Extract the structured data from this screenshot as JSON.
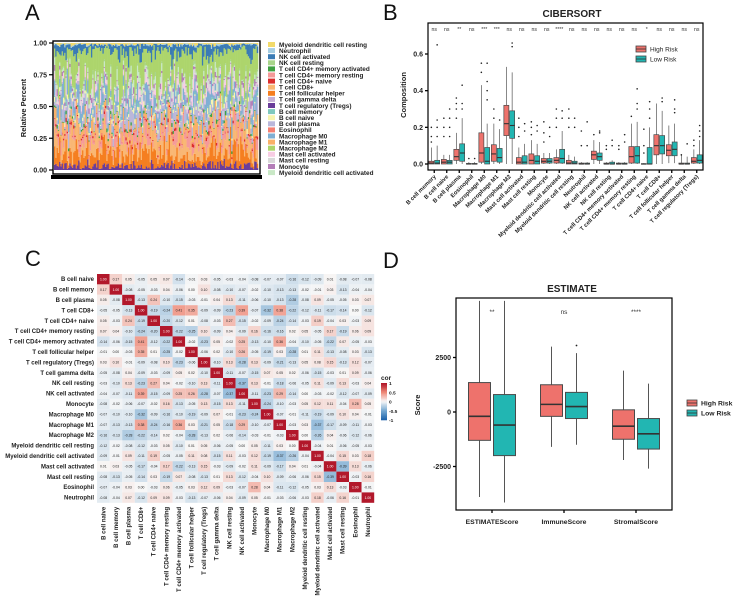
{
  "panel_letters": {
    "a": "A",
    "b": "B",
    "c": "C",
    "d": "D"
  },
  "chart_data": [
    {
      "type": "bar",
      "stacked": true,
      "ylabel": "Relative Percent",
      "yticks": [
        "0.00",
        "0.25",
        "0.50",
        "0.75",
        "1.00"
      ],
      "ylim": [
        0,
        1
      ],
      "legend_position": "right",
      "legend": [
        {
          "name": "Myeloid dendritic cell resting",
          "color": "#F2DA6B",
          "mean_fraction": 0.01
        },
        {
          "name": "Neutrophil",
          "color": "#A6CEE3",
          "mean_fraction": 0.006
        },
        {
          "name": "NK cell activated",
          "color": "#3A7BB5",
          "mean_fraction": 0.05
        },
        {
          "name": "NK cell resting",
          "color": "#A9D58B",
          "mean_fraction": 0.012
        },
        {
          "name": "T cell CD4+ memory activated",
          "color": "#3FA142",
          "mean_fraction": 0.01
        },
        {
          "name": "T cell CD4+ memory resting",
          "color": "#F59A99",
          "mean_fraction": 0.06
        },
        {
          "name": "T cell CD4+ naive",
          "color": "#DC2E2E",
          "mean_fraction": 0.01
        },
        {
          "name": "T cell CD8+",
          "color": "#F9B774",
          "mean_fraction": 0.1
        },
        {
          "name": "T cell follicular helper",
          "color": "#F57E20",
          "mean_fraction": 0.09
        },
        {
          "name": "T cell gamma delta",
          "color": "#C6B0D6",
          "mean_fraction": 0.012
        },
        {
          "name": "T cell regulatory (Tregs)",
          "color": "#6A3D9A",
          "mean_fraction": 0.03
        },
        {
          "name": "B cell memory",
          "color": "#7FC8BE",
          "mean_fraction": 0.012
        },
        {
          "name": "B cell naive",
          "color": "#F7F4AE",
          "mean_fraction": 0.02
        },
        {
          "name": "B cell plasma",
          "color": "#BAB7DA",
          "mean_fraction": 0.06
        },
        {
          "name": "Eosinophil",
          "color": "#F58072",
          "mean_fraction": 0.006
        },
        {
          "name": "Macrophage M0",
          "color": "#80AFD3",
          "mean_fraction": 0.08
        },
        {
          "name": "Macrophage M1",
          "color": "#F9B168",
          "mean_fraction": 0.06
        },
        {
          "name": "Macrophage M2",
          "color": "#ADD56C",
          "mean_fraction": 0.23
        },
        {
          "name": "Mast cell activated",
          "color": "#F7CDE3",
          "mean_fraction": 0.03
        },
        {
          "name": "Mast cell resting",
          "color": "#D9D9D9",
          "mean_fraction": 0.03
        },
        {
          "name": "Monocyte",
          "color": "#B47EB8",
          "mean_fraction": 0.02
        },
        {
          "name": "Myeloid dendritic cell activated",
          "color": "#C9E8C6",
          "mean_fraction": 0.03
        }
      ]
    },
    {
      "type": "box",
      "title": "CIBERSORT",
      "ylabel": "Composition",
      "yticks": [
        "0.0",
        "0.2",
        "0.4",
        "0.6"
      ],
      "ylim": [
        -0.02,
        0.75
      ],
      "legend_position": "top-right",
      "groups": [
        {
          "name": "High Risk",
          "color": "#EE726C"
        },
        {
          "name": "Low Risk",
          "color": "#22B6B2"
        }
      ],
      "categories": [
        "B cell memory",
        "B cell naive",
        "B cell plasma",
        "Eosinophil",
        "Macrophage M0",
        "Macrophage M1",
        "Macrophage M2",
        "Mast cell activated",
        "Mast cell resting",
        "Monocyte",
        "Myeloid dendritic cell activated",
        "Myeloid dendritic cell resting",
        "Neutrophil",
        "NK cell activated",
        "NK cell resting",
        "T cell CD4+ memory activated",
        "T cell CD4+ memory resting",
        "T cell CD4+ naive",
        "T cell CD8+",
        "T cell follicular helper",
        "T cell gamma delta",
        "T cell regulatory (Tregs)"
      ],
      "significance": [
        "ns",
        "ns",
        "**",
        "ns",
        "***",
        "***",
        "ns",
        "ns",
        "ns",
        "ns",
        "****",
        "ns",
        "ns",
        "ns",
        "ns",
        "ns",
        "ns",
        "*",
        "ns",
        "ns",
        "ns",
        "ns"
      ],
      "stats_order": [
        "min",
        "q1",
        "median",
        "q3",
        "max"
      ],
      "high": [
        [
          0,
          0,
          0.005,
          0.015,
          0.09
        ],
        [
          0,
          0,
          0.01,
          0.025,
          0.05
        ],
        [
          0,
          0.02,
          0.04,
          0.08,
          0.17
        ],
        [
          0,
          0,
          0,
          0.003,
          0.01
        ],
        [
          0,
          0.01,
          0.06,
          0.17,
          0.43
        ],
        [
          0,
          0.015,
          0.055,
          0.105,
          0.22
        ],
        [
          0,
          0.155,
          0.22,
          0.32,
          0.53
        ],
        [
          0,
          0,
          0.01,
          0.035,
          0.09
        ],
        [
          0,
          0,
          0.02,
          0.055,
          0.13
        ],
        [
          0,
          0.005,
          0.015,
          0.03,
          0.06
        ],
        [
          0,
          0.005,
          0.02,
          0.035,
          0.08
        ],
        [
          0,
          0,
          0.005,
          0.02,
          0.05
        ],
        [
          0,
          0,
          0,
          0.005,
          0.01
        ],
        [
          0,
          0.025,
          0.05,
          0.07,
          0.13
        ],
        [
          0,
          0,
          0,
          0.005,
          0.01
        ],
        [
          0,
          0,
          0,
          0.005,
          0.01
        ],
        [
          0,
          0.005,
          0.04,
          0.095,
          0.22
        ],
        [
          0,
          0,
          0,
          0.002,
          0.005
        ],
        [
          0,
          0.05,
          0.1,
          0.16,
          0.33
        ],
        [
          0.005,
          0.045,
          0.075,
          0.105,
          0.21
        ],
        [
          0,
          0,
          0,
          0.005,
          0.05
        ],
        [
          0,
          0.005,
          0.015,
          0.035,
          0.08
        ]
      ],
      "low": [
        [
          0,
          0,
          0.005,
          0.02,
          0.1
        ],
        [
          0,
          0,
          0.01,
          0.02,
          0.05
        ],
        [
          0,
          0.015,
          0.06,
          0.11,
          0.25
        ],
        [
          0,
          0,
          0,
          0.003,
          0.01
        ],
        [
          0,
          0,
          0.015,
          0.09,
          0.22
        ],
        [
          0,
          0.01,
          0.035,
          0.085,
          0.19
        ],
        [
          0,
          0.14,
          0.21,
          0.29,
          0.5
        ],
        [
          0,
          0,
          0.01,
          0.045,
          0.11
        ],
        [
          0,
          0,
          0.015,
          0.045,
          0.11
        ],
        [
          0,
          0.005,
          0.015,
          0.03,
          0.06
        ],
        [
          0,
          0.005,
          0.03,
          0.08,
          0.18
        ],
        [
          0,
          0,
          0.005,
          0.015,
          0.04
        ],
        [
          0,
          0,
          0,
          0.005,
          0.01
        ],
        [
          0,
          0.02,
          0.04,
          0.06,
          0.12
        ],
        [
          0,
          0,
          0,
          0.01,
          0.02
        ],
        [
          0,
          0,
          0,
          0.005,
          0.01
        ],
        [
          0,
          0.005,
          0.045,
          0.095,
          0.23
        ],
        [
          0,
          0,
          0,
          0.09,
          0.2
        ],
        [
          0,
          0.055,
          0.1,
          0.155,
          0.29
        ],
        [
          0.005,
          0.045,
          0.08,
          0.12,
          0.22
        ],
        [
          0,
          0,
          0,
          0.005,
          0.04
        ],
        [
          0,
          0.005,
          0.02,
          0.05,
          0.13
        ]
      ],
      "high_outliers": [
        [
          0.2,
          0.15,
          0.12
        ],
        [
          0.25,
          0.2,
          0.15
        ],
        [
          0.36,
          0.33,
          0.3,
          0.25
        ],
        [
          0.03
        ],
        [
          0.55,
          0.5
        ],
        [
          0.3,
          0.25
        ],
        [],
        [
          0.25,
          0.2,
          0.15
        ],
        [
          0.23,
          0.2,
          0.16
        ],
        [
          0.23,
          0.17,
          0.12
        ],
        [
          0.3,
          0.25,
          0.2
        ],
        [
          0.3,
          0.25,
          0.2
        ],
        [
          0.18,
          0.1
        ],
        [
          0.16
        ],
        [
          0.1,
          0.08
        ],
        [
          0.1,
          0.08
        ],
        [
          0.26
        ],
        [
          0.19,
          0.1,
          0.06
        ],
        [],
        [],
        [
          0.05
        ],
        [
          0.13,
          0.1
        ]
      ],
      "low_outliers": [
        [
          0.65,
          0.24,
          0.2,
          0.15
        ],
        [
          0.3,
          0.25,
          0.2,
          0.15
        ],
        [
          0.43,
          0.33,
          0.3
        ],
        [
          0.03
        ],
        [
          0.55,
          0.45,
          0.4,
          0.35
        ],
        [
          0.24
        ],
        [
          0.66,
          0.64
        ],
        [
          0.22,
          0.18
        ],
        [
          0.21,
          0.18
        ],
        [
          0.2,
          0.15
        ],
        [
          0.29,
          0.25
        ],
        [
          0.25,
          0.2
        ],
        [
          0.23,
          0.1
        ],
        [
          0.18,
          0.17
        ],
        [
          0.13,
          0.1
        ],
        [
          0.16,
          0.12
        ],
        [
          0.41,
          0.33,
          0.3
        ],
        [
          0.34,
          0.3,
          0.25
        ],
        [
          0.36,
          0.34
        ],
        [
          0.35,
          0.3,
          0.28
        ],
        [
          0.11
        ],
        [
          0.21,
          0.18,
          0.15
        ]
      ]
    },
    {
      "type": "heatmap",
      "labels": [
        "B cell naive",
        "B cell memory",
        "B cell plasma",
        "T cell CD8+",
        "T cell CD4+ naive",
        "T cell CD4+ memory resting",
        "T cell CD4+ memory activated",
        "T cell follicular helper",
        "T cell regulatory (Tregs)",
        "T cell gamma delta",
        "NK cell resting",
        "NK cell activated",
        "Monocyte",
        "Macrophage M0",
        "Macrophage M1",
        "Macrophage M2",
        "Myeloid dendritic cell resting",
        "Myeloid dendritic cell activated",
        "Mast cell activated",
        "Mast cell resting",
        "Eosinophil",
        "Neutrophil"
      ],
      "legend_title": "cor",
      "legend_ticks": [
        "1",
        "0.5",
        "0",
        "-0.5",
        "-1"
      ],
      "value_range": [
        -1,
        1
      ],
      "matrix_lower_triangle": [
        [
          1
        ],
        [
          0.17,
          1
        ],
        [
          0.05,
          -0.08,
          1
        ],
        [
          -0.05,
          -0.05,
          -0.13,
          1
        ],
        [
          0.05,
          -0.03,
          0.24,
          -0.19,
          1
        ],
        [
          0.07,
          0.04,
          -0.1,
          -0.24,
          -0.2,
          1
        ],
        [
          -0.14,
          -0.06,
          -0.15,
          0.41,
          -0.12,
          -0.22,
          1
        ],
        [
          -0.01,
          0.0,
          -0.03,
          0.35,
          0.01,
          -0.25,
          -0.02,
          1
        ],
        [
          0.03,
          0.1,
          -0.01,
          -0.09,
          -0.08,
          0.1,
          -0.23,
          -0.06,
          1
        ],
        [
          -0.05,
          -0.08,
          0.04,
          -0.09,
          -0.03,
          -0.09,
          0.05,
          0.02,
          -0.1,
          1
        ],
        [
          -0.03,
          -0.1,
          0.13,
          -0.23,
          0.27,
          0.04,
          -0.02,
          -0.1,
          0.13,
          -0.11,
          1
        ],
        [
          -0.04,
          -0.07,
          -0.11,
          0.39,
          -0.15,
          -0.09,
          0.25,
          0.26,
          -0.28,
          -0.07,
          -0.37,
          1
        ],
        [
          -0.08,
          -0.02,
          -0.06,
          -0.07,
          -0.02,
          0.16,
          -0.13,
          -0.05,
          0.13,
          -0.15,
          0.13,
          -0.11,
          1
        ],
        [
          -0.07,
          -0.1,
          -0.1,
          -0.32,
          -0.09,
          -0.16,
          -0.1,
          -0.19,
          -0.09,
          0.07,
          -0.01,
          -0.23,
          -0.24,
          1
        ],
        [
          -0.07,
          -0.13,
          -0.13,
          0.38,
          -0.24,
          -0.16,
          0.36,
          0.03,
          -0.21,
          0.05,
          -0.18,
          0.29,
          -0.1,
          -0.07,
          1
        ],
        [
          -0.16,
          -0.13,
          -0.28,
          -0.22,
          -0.14,
          0.02,
          -0.04,
          -0.28,
          -0.13,
          0.02,
          -0.06,
          -0.14,
          -0.03,
          -0.01,
          -0.03,
          1
        ],
        [
          -0.12,
          -0.02,
          -0.08,
          -0.12,
          -0.03,
          0.05,
          -0.1,
          0.01,
          0.05,
          -0.06,
          -0.05,
          0.0,
          0.05,
          -0.11,
          0.03,
          0.0,
          1
        ],
        [
          -0.09,
          -0.01,
          0.09,
          -0.11,
          0.19,
          -0.05,
          -0.05,
          0.11,
          0.08,
          -0.15,
          0.11,
          -0.03,
          0.12,
          -0.19,
          -0.37,
          -0.26,
          -0.04,
          1
        ],
        [
          0.01,
          0.03,
          -0.05,
          -0.17,
          -0.04,
          0.17,
          -0.22,
          -0.13,
          0.15,
          -0.03,
          -0.09,
          -0.02,
          0.11,
          -0.09,
          -0.17,
          0.04,
          0.01,
          -0.04,
          1
        ],
        [
          -0.08,
          -0.13,
          -0.05,
          -0.14,
          0.03,
          -0.19,
          0.07,
          -0.08,
          -0.13,
          0.01,
          0.13,
          -0.12,
          -0.04,
          0.1,
          -0.09,
          -0.06,
          -0.06,
          0.15,
          -0.39,
          1
        ],
        [
          -0.07,
          -0.04,
          0.03,
          0.0,
          -0.03,
          0.06,
          -0.05,
          0.03,
          0.12,
          0.09,
          -0.03,
          -0.07,
          0.28,
          0.04,
          -0.11,
          -0.12,
          -0.05,
          0.03,
          0.13,
          -0.03,
          1
        ],
        [
          -0.08,
          -0.04,
          0.07,
          -0.12,
          0.09,
          0.09,
          -0.03,
          -0.13,
          -0.07,
          -0.06,
          0.04,
          -0.09,
          0.05,
          -0.01,
          -0.03,
          -0.06,
          -0.03,
          0.18,
          -0.06,
          0.16,
          -0.01,
          1
        ]
      ]
    },
    {
      "type": "box",
      "title": "ESTIMATE",
      "ylabel": "Score",
      "yticks": [
        "-2500",
        "0",
        "2500"
      ],
      "ytick_values": [
        -2500,
        0,
        2500
      ],
      "ylim": [
        -4500,
        5100
      ],
      "legend_position": "right",
      "groups": [
        {
          "name": "High Risk",
          "color": "#EE726C"
        },
        {
          "name": "Low Risk",
          "color": "#22B6B2"
        }
      ],
      "categories": [
        "ESTIMATEScore",
        "ImmuneScore",
        "StromalScore"
      ],
      "significance": [
        "**",
        "ns",
        "****"
      ],
      "stats_order": [
        "min",
        "q1",
        "median",
        "q3",
        "max"
      ],
      "high": [
        [
          -3900,
          -1300,
          -200,
          1350,
          5100
        ],
        [
          -1600,
          -200,
          350,
          1250,
          3000
        ],
        [
          -2200,
          -1250,
          -650,
          100,
          1900
        ]
      ],
      "low": [
        [
          -4150,
          -2000,
          -600,
          800,
          5100
        ],
        [
          -1500,
          -300,
          250,
          900,
          2700
        ],
        [
          -2600,
          -1700,
          -1000,
          -300,
          1300
        ]
      ],
      "high_outliers": [
        [],
        [],
        []
      ],
      "low_outliers": [
        [],
        [
          3050
        ],
        []
      ]
    }
  ]
}
